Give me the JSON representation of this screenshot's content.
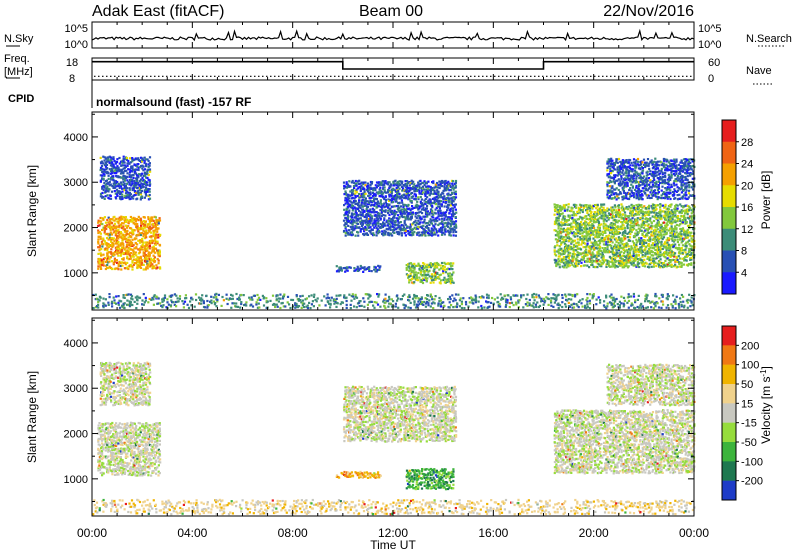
{
  "header": {
    "station": "Adak East (fitACF)",
    "beam": "Beam 00",
    "date": "22/Nov/2016"
  },
  "noise_panel": {
    "left_label": "N.Sky",
    "right_label": "N.Search",
    "left_ticks": [
      "10^5",
      "10^0"
    ],
    "right_ticks": [
      "10^5",
      "10^0"
    ]
  },
  "freq_panel": {
    "left_label_1": "Freq.",
    "left_label_2": "[MHz]",
    "right_label": "Nave",
    "left_ticks": [
      "18",
      "8"
    ],
    "right_ticks": [
      "60",
      "0"
    ]
  },
  "cpid": {
    "label": "CPID",
    "text": "normalsound (fast) -157 RF"
  },
  "x_axis": {
    "ticks": [
      "00:00",
      "04:00",
      "08:00",
      "12:00",
      "16:00",
      "20:00",
      "00:00"
    ],
    "label": "Time UT"
  },
  "chart_data": [
    {
      "type": "heatmap",
      "name": "power",
      "ylabel": "Slant Range [km]",
      "yticks": [
        "1000",
        "2000",
        "3000",
        "4000"
      ],
      "ylim": [
        180,
        4550
      ],
      "xlim_hours": [
        0,
        24
      ],
      "colorbar": {
        "label": "Power [dB]",
        "ticks": [
          "4",
          "8",
          "12",
          "16",
          "20",
          "24",
          "28"
        ],
        "range": [
          0,
          32
        ],
        "colors": [
          "#1a1aff",
          "#2850b4",
          "#3c8c78",
          "#82c83c",
          "#e6dc00",
          "#f5a000",
          "#f06414",
          "#e61e1e"
        ]
      },
      "regions": [
        {
          "t": [
            0.2,
            2.7
          ],
          "r": [
            1050,
            2200
          ],
          "level": 5
        },
        {
          "t": [
            0.3,
            2.3
          ],
          "r": [
            2600,
            3550
          ],
          "level": 1
        },
        {
          "t": [
            9.7,
            11.5
          ],
          "r": [
            1000,
            1150
          ],
          "level": 1
        },
        {
          "t": [
            12.5,
            14.4
          ],
          "r": [
            750,
            1200
          ],
          "level": 3
        },
        {
          "t": [
            10.0,
            14.5
          ],
          "r": [
            1800,
            3000
          ],
          "level": 1
        },
        {
          "t": [
            18.4,
            24.0
          ],
          "r": [
            1100,
            2500
          ],
          "level": 3
        },
        {
          "t": [
            20.5,
            24.0
          ],
          "r": [
            2600,
            3500
          ],
          "level": 1
        },
        {
          "t": [
            0.0,
            24.0
          ],
          "r": [
            200,
            500
          ],
          "level": 2
        }
      ]
    },
    {
      "type": "heatmap",
      "name": "velocity",
      "ylabel": "Slant Range [km]",
      "yticks": [
        "1000",
        "2000",
        "3000",
        "4000"
      ],
      "ylim": [
        180,
        4550
      ],
      "xlim_hours": [
        0,
        24
      ],
      "colorbar": {
        "label": "Velocity [m s^-1]",
        "ticks": [
          "200",
          "100",
          "50",
          "15",
          "-15",
          "-50",
          "-100",
          "-200"
        ],
        "colors": [
          "#1e3cc8",
          "#1e7850",
          "#3cb43c",
          "#96dc3c",
          "#c8c8c0",
          "#f0d28c",
          "#f0b400",
          "#f07814",
          "#e61e1e"
        ]
      },
      "regions": [
        {
          "t": [
            0.2,
            2.7
          ],
          "r": [
            1050,
            2200
          ],
          "level": 4
        },
        {
          "t": [
            0.3,
            2.3
          ],
          "r": [
            2600,
            3550
          ],
          "level": 4
        },
        {
          "t": [
            9.7,
            11.5
          ],
          "r": [
            1000,
            1150
          ],
          "level": 6
        },
        {
          "t": [
            12.5,
            14.4
          ],
          "r": [
            750,
            1200
          ],
          "level": 2
        },
        {
          "t": [
            10.0,
            14.5
          ],
          "r": [
            1800,
            3000
          ],
          "level": 4
        },
        {
          "t": [
            18.4,
            24.0
          ],
          "r": [
            1100,
            2500
          ],
          "level": 4
        },
        {
          "t": [
            20.5,
            24.0
          ],
          "r": [
            2600,
            3500
          ],
          "level": 4
        },
        {
          "t": [
            0.0,
            24.0
          ],
          "r": [
            200,
            500
          ],
          "level": 5
        }
      ]
    }
  ],
  "frequency_series": {
    "hours": [
      0,
      10.0,
      10.0,
      18.0,
      18.0,
      24
    ],
    "values": [
      16.3,
      16.3,
      13.0,
      13.0,
      16.3,
      16.3
    ],
    "nave_value": 10
  }
}
